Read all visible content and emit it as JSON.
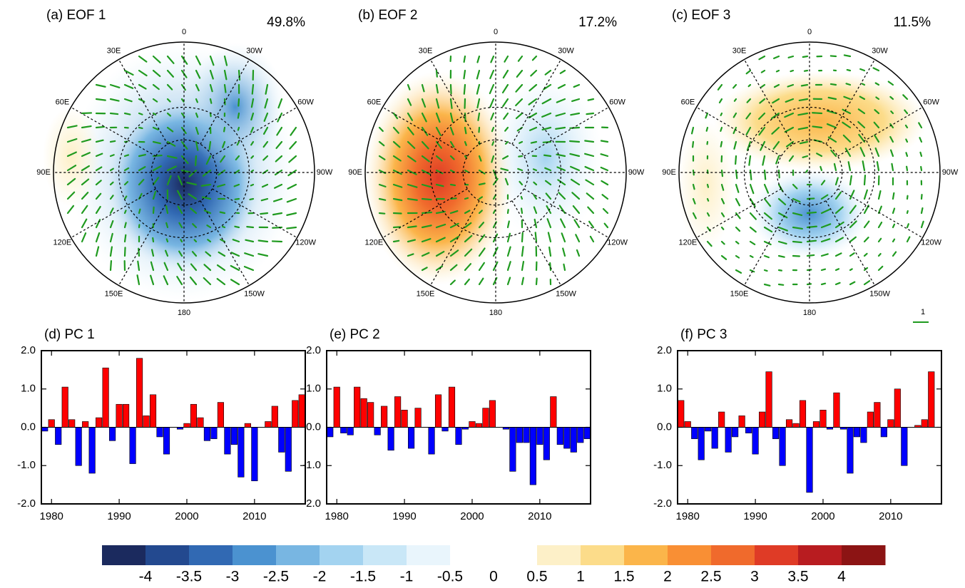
{
  "chart_data": [
    {
      "type": "polar_map",
      "title": "(a) EOF 1",
      "annotation": "49.8%",
      "lon_labels": [
        "0",
        "30W",
        "60W",
        "90W",
        "120W",
        "150W",
        "180",
        "150E",
        "120E",
        "90E",
        "60E",
        "30E"
      ]
    },
    {
      "type": "polar_map",
      "title": "(b) EOF 2",
      "annotation": "17.2%",
      "lon_labels": [
        "0",
        "30W",
        "60W",
        "90W",
        "120W",
        "150W",
        "180",
        "150E",
        "120E",
        "90E",
        "60E",
        "30E"
      ],
      "reference_vector_label": "1"
    },
    {
      "type": "polar_map",
      "title": "(c) EOF 3",
      "annotation": "11.5%",
      "lon_labels": [
        "0",
        "30W",
        "60W",
        "90W",
        "120W",
        "150W",
        "180",
        "150E",
        "120E",
        "90E",
        "60E",
        "30E"
      ]
    },
    {
      "type": "bar",
      "title": "(d) PC 1",
      "positive_color": "#ff0000",
      "negative_color": "#0000ff",
      "x": [
        1979,
        1980,
        1981,
        1982,
        1983,
        1984,
        1985,
        1986,
        1987,
        1988,
        1989,
        1990,
        1991,
        1992,
        1993,
        1994,
        1995,
        1996,
        1997,
        1998,
        1999,
        2000,
        2001,
        2002,
        2003,
        2004,
        2005,
        2006,
        2007,
        2008,
        2009,
        2010,
        2011,
        2012,
        2013,
        2014,
        2015,
        2016,
        2017
      ],
      "values": [
        -0.1,
        0.2,
        -0.45,
        1.05,
        0.2,
        -1.0,
        0.15,
        -1.2,
        0.25,
        1.55,
        -0.35,
        0.6,
        0.6,
        -0.95,
        1.8,
        0.3,
        0.85,
        -0.25,
        -0.7,
        0.0,
        -0.05,
        0.1,
        0.6,
        0.25,
        -0.35,
        -0.3,
        0.65,
        -0.7,
        -0.45,
        -1.3,
        0.1,
        -1.4,
        0.0,
        0.15,
        0.55,
        -0.65,
        -1.15,
        0.7,
        0.85
      ],
      "xlim": [
        1978.5,
        2017.5
      ],
      "xticks": [
        1980,
        1990,
        2000,
        2010
      ],
      "ylim": [
        -2,
        2
      ],
      "yticks": [
        {
          "value": -2,
          "label": "-2.0"
        },
        {
          "value": -1,
          "label": "-1.0"
        },
        {
          "value": 0,
          "label": "0.0"
        },
        {
          "value": 1,
          "label": "1.0"
        },
        {
          "value": 2,
          "label": "2.0"
        }
      ]
    },
    {
      "type": "bar",
      "title": "(e) PC 2",
      "positive_color": "#ff0000",
      "negative_color": "#0000ff",
      "x": [
        1979,
        1980,
        1981,
        1982,
        1983,
        1984,
        1985,
        1986,
        1987,
        1988,
        1989,
        1990,
        1991,
        1992,
        1993,
        1994,
        1995,
        1996,
        1997,
        1998,
        1999,
        2000,
        2001,
        2002,
        2003,
        2004,
        2005,
        2006,
        2007,
        2008,
        2009,
        2010,
        2011,
        2012,
        2013,
        2014,
        2015,
        2016,
        2017
      ],
      "values": [
        -0.25,
        1.05,
        -0.15,
        -0.2,
        1.05,
        0.75,
        0.65,
        -0.2,
        0.55,
        -0.6,
        0.8,
        0.45,
        -0.55,
        0.5,
        0.0,
        -0.7,
        0.85,
        -0.1,
        1.05,
        -0.45,
        -0.05,
        0.15,
        0.1,
        0.5,
        0.7,
        0.0,
        -0.05,
        -1.15,
        -0.4,
        -0.4,
        -1.5,
        -0.45,
        -0.85,
        0.8,
        -0.45,
        -0.55,
        -0.65,
        -0.4,
        -0.3
      ],
      "xlim": [
        1978.5,
        2017.5
      ],
      "xticks": [
        1980,
        1990,
        2000,
        2010
      ],
      "ylim": [
        -2,
        2
      ],
      "yticks": [
        {
          "value": -2,
          "label": "-2.0"
        },
        {
          "value": -1,
          "label": "-1.0"
        },
        {
          "value": 0,
          "label": "0.0"
        },
        {
          "value": 1,
          "label": "1.0"
        },
        {
          "value": 2,
          "label": "2.0"
        }
      ]
    },
    {
      "type": "bar",
      "title": "(f) PC 3",
      "positive_color": "#ff0000",
      "negative_color": "#0000ff",
      "x": [
        1979,
        1980,
        1981,
        1982,
        1983,
        1984,
        1985,
        1986,
        1987,
        1988,
        1989,
        1990,
        1991,
        1992,
        1993,
        1994,
        1995,
        1996,
        1997,
        1998,
        1999,
        2000,
        2001,
        2002,
        2003,
        2004,
        2005,
        2006,
        2007,
        2008,
        2009,
        2010,
        2011,
        2012,
        2013,
        2014,
        2015,
        2016,
        2017
      ],
      "values": [
        0.7,
        0.15,
        -0.3,
        -0.85,
        -0.1,
        -0.55,
        0.4,
        -0.65,
        -0.25,
        0.3,
        -0.15,
        -0.7,
        0.4,
        1.45,
        -0.3,
        -1.0,
        0.2,
        0.1,
        0.7,
        -1.7,
        0.15,
        0.45,
        -0.05,
        0.9,
        -0.05,
        -1.2,
        -0.25,
        -0.4,
        0.4,
        0.65,
        -0.25,
        0.2,
        1.0,
        -1.0,
        0.0,
        0.05,
        0.2,
        1.45,
        0.0
      ],
      "xlim": [
        1978.5,
        2017.5
      ],
      "xticks": [
        1980,
        1990,
        2000,
        2010
      ],
      "ylim": [
        -2,
        2
      ],
      "yticks": [
        {
          "value": -2,
          "label": "-2.0"
        },
        {
          "value": -1,
          "label": "-1.0"
        },
        {
          "value": 0,
          "label": "0.0"
        },
        {
          "value": 1,
          "label": "1.0"
        },
        {
          "value": 2,
          "label": "2.0"
        }
      ]
    },
    {
      "type": "colorbar",
      "ticks": [
        -4,
        -3.5,
        -3,
        -2.5,
        -2,
        -1.5,
        -1,
        -0.5,
        0,
        0.5,
        1,
        1.5,
        2,
        2.5,
        3,
        3.5,
        4
      ],
      "colors": [
        "#1b2a5e",
        "#23498f",
        "#3169b3",
        "#4b92d0",
        "#78b6e2",
        "#a3d3f0",
        "#c9e7f7",
        "#e9f5fc",
        "#ffffff",
        "#ffffff",
        "#fdf0c8",
        "#fcdc8a",
        "#fbb54a",
        "#f98f34",
        "#f06a2c",
        "#df3b26",
        "#b81c20",
        "#8c1414"
      ]
    }
  ]
}
